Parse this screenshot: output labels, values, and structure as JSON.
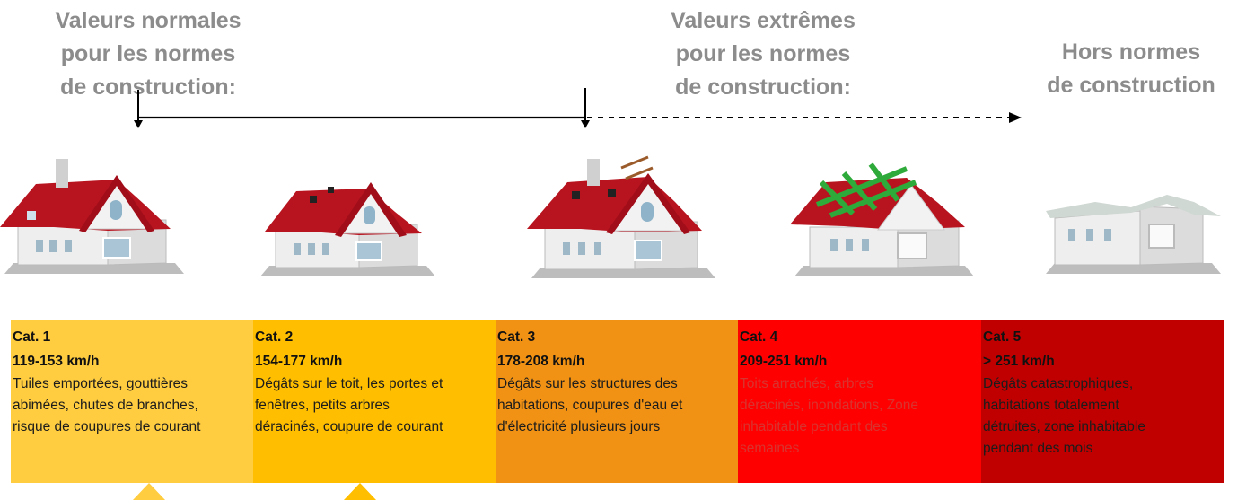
{
  "headers": {
    "normal": [
      "Valeurs normales",
      "pour les normes",
      "de construction:"
    ],
    "extreme": [
      "Valeurs extrêmes",
      "pour les normes",
      "de construction:"
    ],
    "beyond": [
      "Hors normes",
      "de construction"
    ]
  },
  "categories": [
    {
      "name": "Cat. 1",
      "speed": "119-153 km/h",
      "desc": [
        "Tuiles emportées, gouttières",
        "abimées, chutes de branches,",
        "risque de coupures de courant"
      ],
      "color": "#ffcd3f"
    },
    {
      "name": "Cat. 2",
      "speed": "154-177 km/h",
      "desc": [
        "Dégâts sur le toit, les portes et",
        "fenêtres,  petits arbres",
        "déracinés, coupure de courant"
      ],
      "color": "#ffbf00"
    },
    {
      "name": "Cat. 3",
      "speed": "178-208 km/h",
      "desc": [
        "Dégâts sur les structures des",
        "habitations, coupures d'eau et",
        "d'électricité plusieurs jours"
      ],
      "color": "#f19214"
    },
    {
      "name": "Cat. 4",
      "speed": "209-251 km/h",
      "desc": [
        "Toits arrachés, arbres",
        "déracinés, inondations, Zone",
        "inhabitable pendant des",
        "semaines"
      ],
      "color": "#ff0000"
    },
    {
      "name": "Cat. 5",
      "speed": "> 251 km/h",
      "desc": [
        "Dégâts catastrophiques,",
        "habitations totalement",
        "détruites, zone inhabitable",
        "pendant des mois"
      ],
      "color": "#c00000"
    }
  ]
}
